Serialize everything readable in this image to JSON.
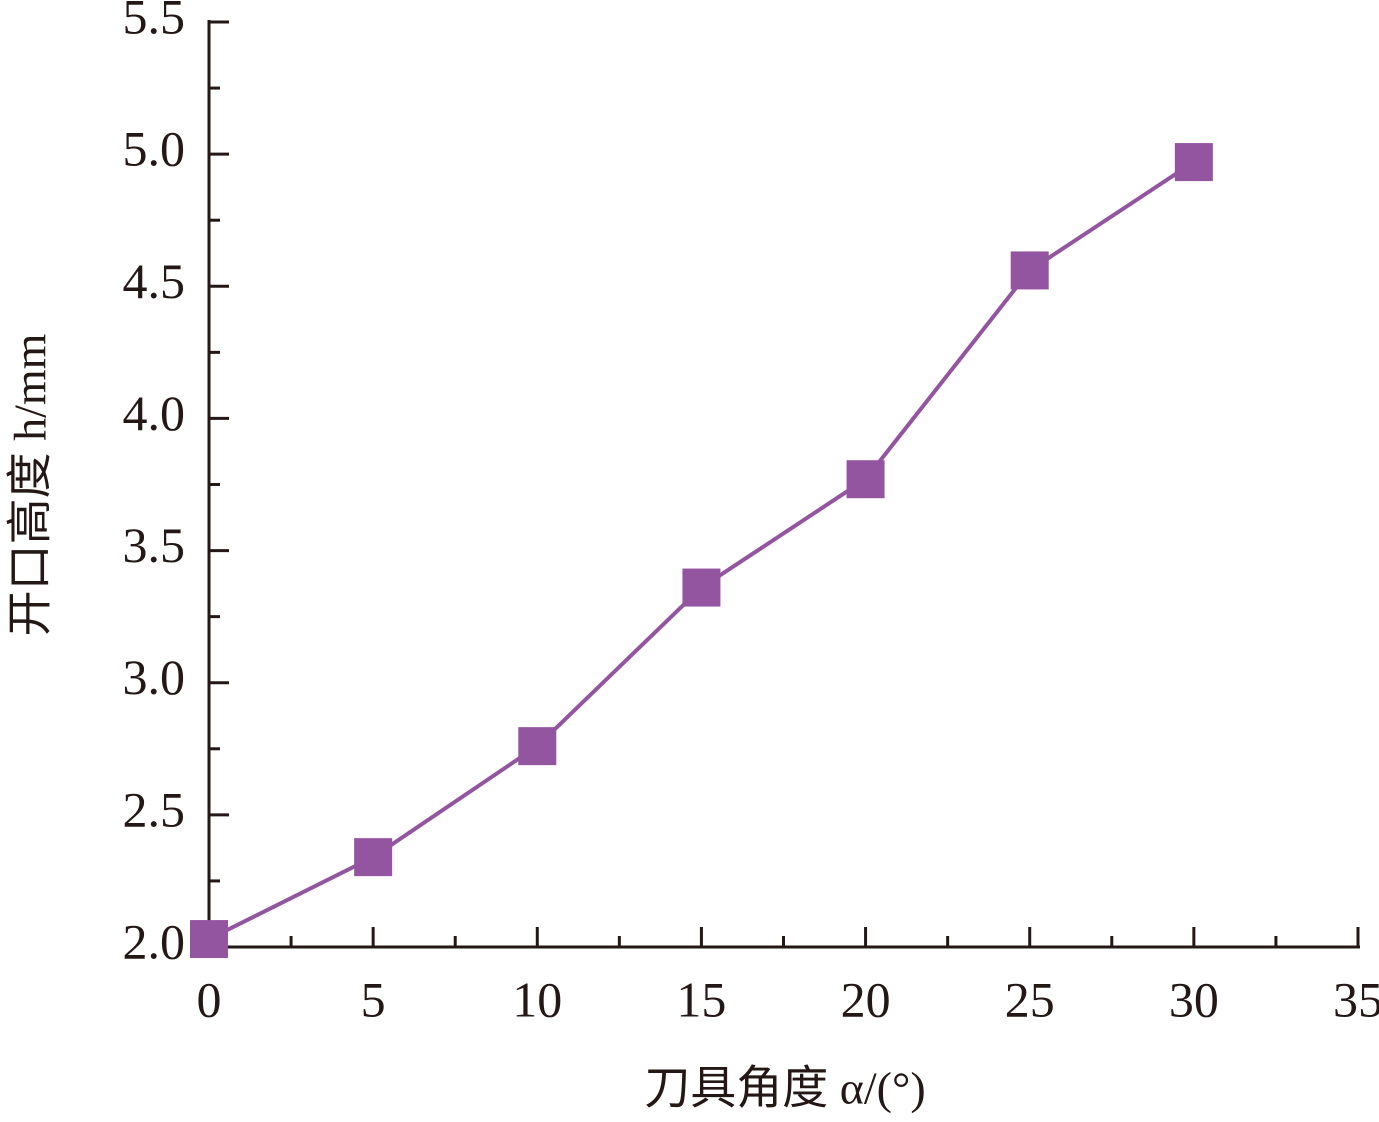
{
  "chart_data": {
    "type": "line",
    "xlabel": "刀具角度 α/(°)",
    "ylabel": "开口高度 h/mm",
    "x": [
      0,
      5,
      10,
      15,
      20,
      25,
      30
    ],
    "series": [
      {
        "color": "#9455a0",
        "values": [
          2.03,
          2.34,
          2.76,
          3.36,
          3.77,
          4.56,
          4.97
        ]
      }
    ],
    "xlim": [
      0,
      35
    ],
    "xticks": [
      0,
      5,
      10,
      15,
      20,
      25,
      30,
      35
    ],
    "xminorticks": [
      2.5,
      7.5,
      12.5,
      17.5,
      22.5,
      27.5,
      32.5
    ],
    "ylim": [
      2,
      5.5
    ],
    "yticks": [
      {
        "value": 2,
        "label": "2.0"
      },
      {
        "value": 2.5,
        "label": "2.5"
      },
      {
        "value": 3,
        "label": "3.0"
      },
      {
        "value": 3.5,
        "label": "3.5"
      },
      {
        "value": 4,
        "label": "4.0"
      },
      {
        "value": 4.5,
        "label": "4.5"
      },
      {
        "value": 5,
        "label": "5.0"
      },
      {
        "value": 5.5,
        "label": "5.5"
      }
    ],
    "yminorticks": [
      2.25,
      2.75,
      3.25,
      3.75,
      4.25,
      4.75,
      5.25
    ],
    "marker": "square"
  }
}
